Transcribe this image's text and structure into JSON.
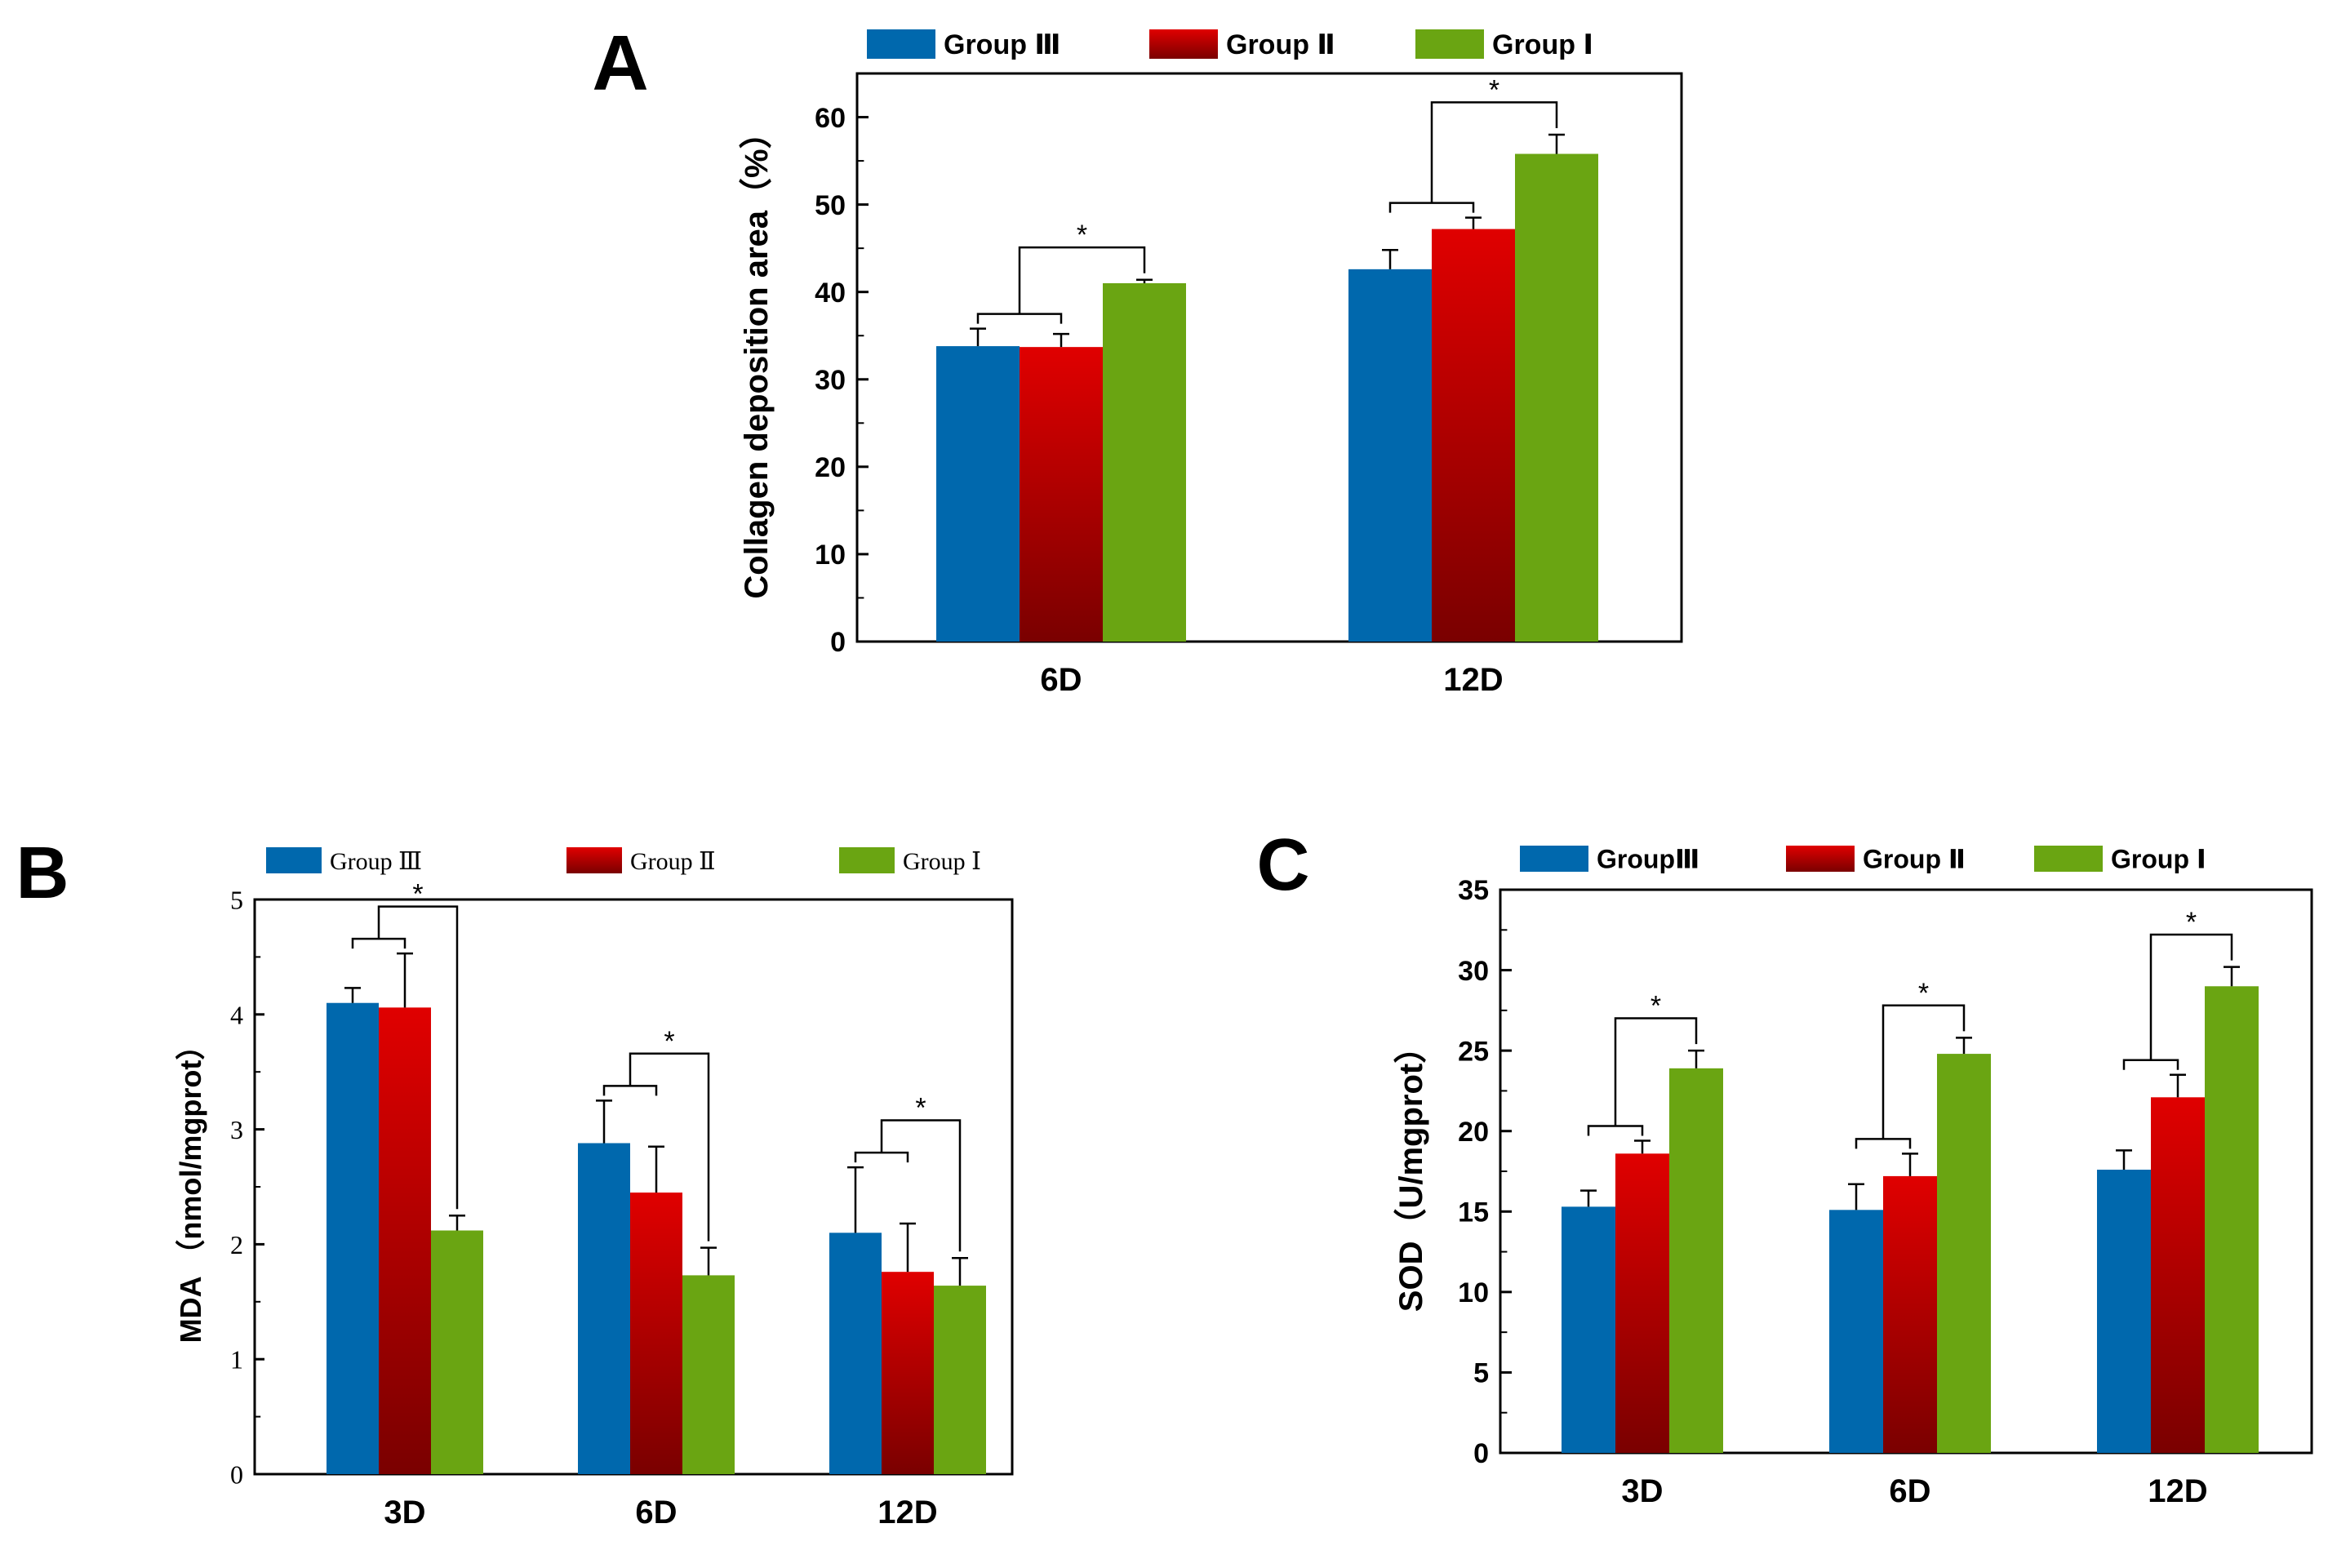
{
  "colors": {
    "group3": "#0068ad",
    "group2_top": "#e00000",
    "group2_bottom": "#7a0000",
    "group1": "#6aa512"
  },
  "chart_data": [
    {
      "panel": "A",
      "type": "bar",
      "categories": [
        "6D",
        "12D"
      ],
      "series": [
        {
          "name": "Group Ⅲ",
          "values": [
            33.8,
            42.6
          ],
          "errors": [
            2.0,
            2.2
          ]
        },
        {
          "name": "Group Ⅱ",
          "values": [
            33.7,
            47.2
          ],
          "errors": [
            1.5,
            1.3
          ]
        },
        {
          "name": "Group Ⅰ",
          "values": [
            41.0,
            55.8
          ],
          "errors": [
            0.4,
            2.2
          ]
        }
      ],
      "xlabel": "",
      "ylabel": "Collagen deposition area（%）",
      "ylim": [
        0,
        65
      ],
      "yticks": [
        0,
        10,
        20,
        30,
        40,
        50,
        60
      ],
      "significance": [
        "*",
        "*"
      ],
      "legend": "top"
    },
    {
      "panel": "B",
      "type": "bar",
      "categories": [
        "3D",
        "6D",
        "12D"
      ],
      "series": [
        {
          "name": "Group Ⅲ",
          "values": [
            4.1,
            2.88,
            2.1
          ],
          "errors": [
            0.13,
            0.37,
            0.57
          ]
        },
        {
          "name": "Group Ⅱ",
          "values": [
            4.06,
            2.45,
            1.76
          ],
          "errors": [
            0.47,
            0.4,
            0.42
          ]
        },
        {
          "name": "Group Ⅰ",
          "values": [
            2.12,
            1.73,
            1.64
          ],
          "errors": [
            0.13,
            0.24,
            0.24
          ]
        }
      ],
      "xlabel": "",
      "ylabel": "MDA （nmol/mgprot）",
      "ylim": [
        0,
        5
      ],
      "yticks": [
        0,
        1,
        2,
        3,
        4,
        5
      ],
      "significance": [
        "*",
        "*",
        "*"
      ],
      "legend": "top"
    },
    {
      "panel": "C",
      "type": "bar",
      "categories": [
        "3D",
        "6D",
        "12D"
      ],
      "series": [
        {
          "name": "GroupⅢ",
          "values": [
            15.3,
            15.1,
            17.6
          ],
          "errors": [
            1.0,
            1.6,
            1.2
          ]
        },
        {
          "name": "Group Ⅱ",
          "values": [
            18.6,
            17.2,
            22.1
          ],
          "errors": [
            0.8,
            1.4,
            1.4
          ]
        },
        {
          "name": "Group Ⅰ",
          "values": [
            23.9,
            24.8,
            29.0
          ],
          "errors": [
            1.1,
            1.0,
            1.2
          ]
        }
      ],
      "xlabel": "",
      "ylabel": "SOD（U/mgprot）",
      "ylim": [
        0,
        35
      ],
      "yticks": [
        0,
        5,
        10,
        15,
        20,
        25,
        30,
        35
      ],
      "significance": [
        "*",
        "*",
        "*"
      ],
      "legend": "top"
    }
  ]
}
